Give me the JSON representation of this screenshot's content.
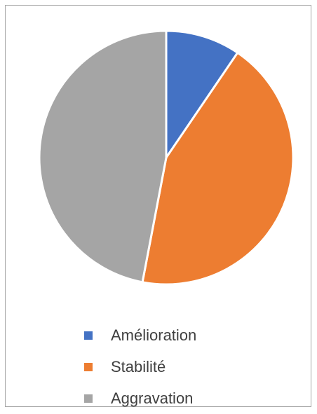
{
  "chart_data": {
    "type": "pie",
    "title": "",
    "categories": [
      "Amélioration",
      "Stabilité",
      "Aggravation"
    ],
    "values": [
      9.5,
      43.5,
      47
    ],
    "colors": [
      "#4472c4",
      "#ed7d31",
      "#a5a5a5"
    ],
    "start_angle": "12 o'clock",
    "direction": "clockwise",
    "legend_position": "bottom"
  }
}
